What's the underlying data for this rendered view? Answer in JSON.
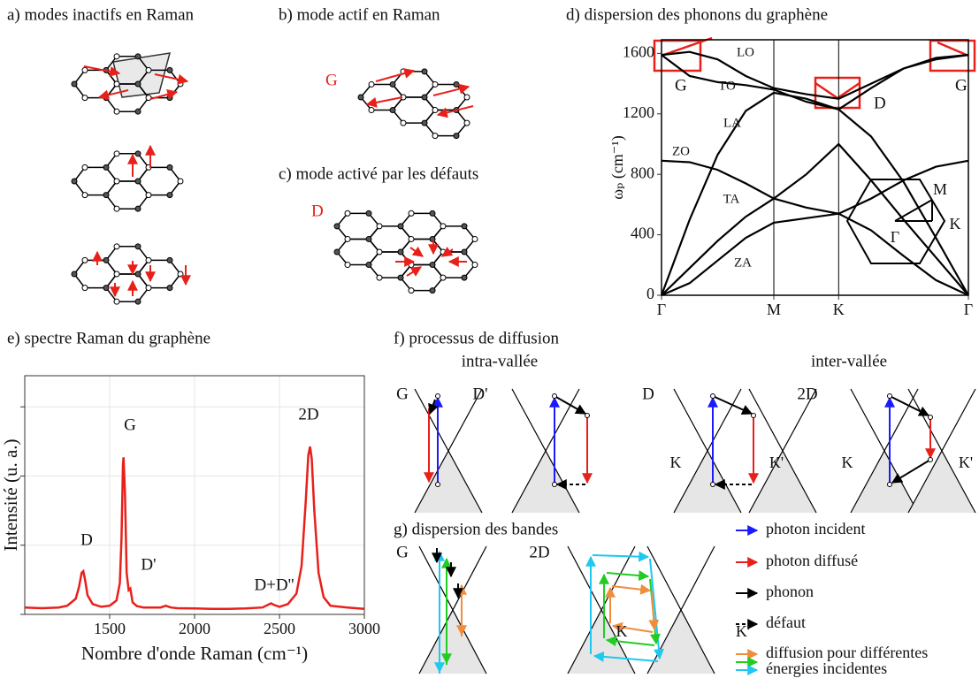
{
  "panels": {
    "a": {
      "title": "a) modes inactifs en Raman"
    },
    "b": {
      "title": "b) mode actif en Raman",
      "mode_label": "G"
    },
    "c": {
      "title": "c) mode activé par les défauts",
      "mode_label": "D"
    },
    "f": {
      "title": "f) processus de diffusion",
      "intra": "intra-vallée",
      "inter": "inter-vallée",
      "labels": [
        "G",
        "D'",
        "D",
        "2D",
        "K",
        "K'",
        "K",
        "K'"
      ]
    },
    "g": {
      "title": "g) dispersion des bandes",
      "labels": [
        "G",
        "2D",
        "K",
        "K'"
      ],
      "legend": [
        "photon incident",
        "photon diffusé",
        "phonon",
        "défaut",
        "diffusion pour différentes",
        "énergies incidentes"
      ]
    }
  },
  "chart_data": [
    {
      "type": "line",
      "title": "d) dispersion des phonons du graphène",
      "y_label": "ωₚ (cm⁻¹)",
      "xlim": [
        0,
        2.732
      ],
      "ylim": [
        0,
        1690
      ],
      "xticks": [
        {
          "value": 0,
          "label": "Γ"
        },
        {
          "value": 1,
          "label": "M"
        },
        {
          "value": 1.577,
          "label": "K"
        },
        {
          "value": 2.732,
          "label": "Γ"
        }
      ],
      "yticks": [
        0,
        400,
        800,
        1200,
        1600
      ],
      "xgrid": true,
      "x": [
        0,
        0.25,
        0.5,
        0.75,
        1,
        1.289,
        1.577,
        1.866,
        2.155,
        2.443,
        2.732
      ],
      "series": [
        {
          "name": "LO",
          "color": "#000000",
          "values": [
            1590,
            1610,
            1560,
            1450,
            1370,
            1330,
            1300,
            1400,
            1500,
            1570,
            1590
          ]
        },
        {
          "name": "TO",
          "color": "#000000",
          "values": [
            1590,
            1450,
            1410,
            1390,
            1360,
            1280,
            1230,
            1370,
            1500,
            1560,
            1590
          ]
        },
        {
          "name": "LA",
          "color": "#000000",
          "values": [
            0,
            500,
            930,
            1220,
            1340,
            1300,
            1230,
            1050,
            750,
            380,
            0
          ]
        },
        {
          "name": "ZO",
          "color": "#000000",
          "values": [
            890,
            880,
            830,
            740,
            640,
            580,
            540,
            640,
            760,
            850,
            890
          ]
        },
        {
          "name": "TA",
          "color": "#000000",
          "values": [
            0,
            180,
            360,
            520,
            640,
            800,
            1000,
            760,
            500,
            250,
            0
          ]
        },
        {
          "name": "ZA",
          "color": "#000000",
          "values": [
            0,
            80,
            230,
            380,
            480,
            510,
            540,
            430,
            260,
            100,
            0
          ]
        }
      ],
      "annotations": [
        "G",
        "D",
        "G"
      ],
      "annotation_color": "#e8201a",
      "inset_labels": [
        "M",
        "K",
        "Γ"
      ]
    },
    {
      "type": "line",
      "title": "e) spectre Raman du graphène",
      "x_label": "Nombre d'onde Raman (cm⁻¹)",
      "y_label": "Intensité (u. a.)",
      "xlim": [
        1000,
        3000
      ],
      "ylim": [
        0,
        0.69
      ],
      "xticks": [
        1500,
        2000,
        2500,
        3000
      ],
      "yticks": [
        0,
        0.2,
        0.4,
        0.6
      ],
      "ytick_labels": false,
      "grid": true,
      "color": "#e8201a",
      "x": [
        1000,
        1100,
        1200,
        1250,
        1300,
        1320,
        1335,
        1345,
        1355,
        1370,
        1400,
        1450,
        1500,
        1540,
        1560,
        1570,
        1578,
        1582,
        1590,
        1600,
        1612,
        1622,
        1635,
        1660,
        1700,
        1800,
        1830,
        1860,
        1900,
        2000,
        2100,
        2200,
        2300,
        2400,
        2430,
        2450,
        2470,
        2500,
        2550,
        2600,
        2630,
        2655,
        2670,
        2680,
        2690,
        2705,
        2730,
        2760,
        2800,
        2900,
        2950,
        3000
      ],
      "values": [
        0.02,
        0.018,
        0.02,
        0.025,
        0.045,
        0.08,
        0.12,
        0.125,
        0.1,
        0.055,
        0.03,
        0.022,
        0.025,
        0.04,
        0.09,
        0.22,
        0.43,
        0.454,
        0.35,
        0.12,
        0.07,
        0.075,
        0.035,
        0.024,
        0.02,
        0.02,
        0.025,
        0.02,
        0.018,
        0.017,
        0.016,
        0.016,
        0.017,
        0.02,
        0.027,
        0.032,
        0.027,
        0.022,
        0.03,
        0.06,
        0.14,
        0.33,
        0.46,
        0.485,
        0.45,
        0.3,
        0.12,
        0.05,
        0.025,
        0.02,
        0.018,
        0.016
      ],
      "peak_labels": [
        "D",
        "G",
        "D'",
        "D+D''",
        "2D"
      ]
    }
  ]
}
